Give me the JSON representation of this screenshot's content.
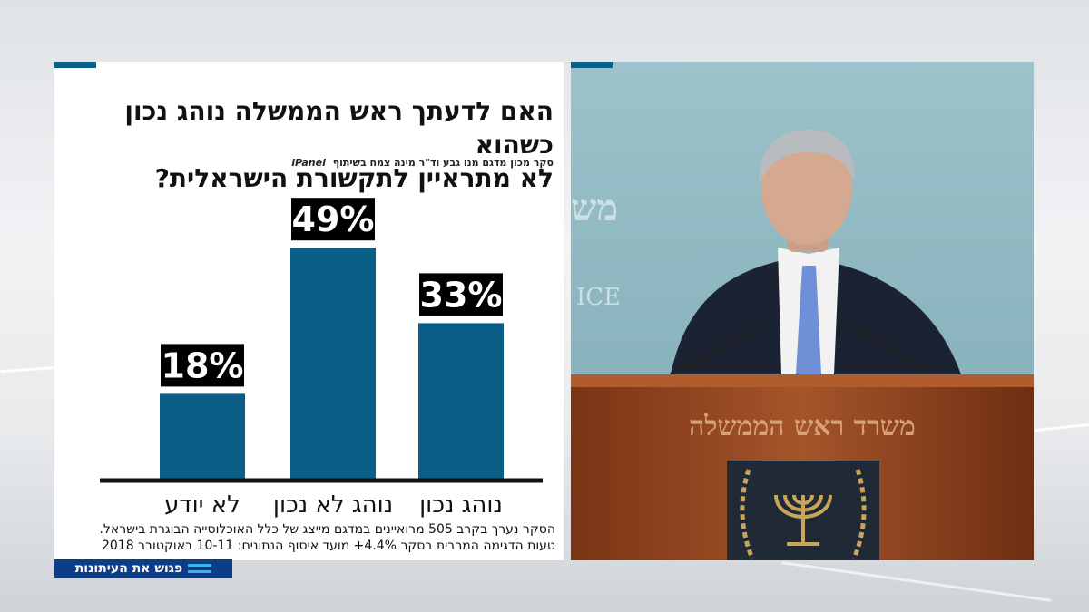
{
  "headline": {
    "line1": "האם לדעתך ראש הממשלה נוהג נכון כשהוא",
    "line2": "לא מתראיין לתקשורת הישראלית?"
  },
  "credit": {
    "text": "סקר מכון מדגם מנו גבע וד\"ר מינה צמח בשיתוף",
    "partner": "iPanel"
  },
  "chart_data": {
    "type": "bar",
    "categories": [
      "לא יודע",
      "נוהג לא נכון",
      "נוהג נכון"
    ],
    "values": [
      18,
      49,
      33
    ],
    "value_labels": [
      "18%",
      "49%",
      "33%"
    ],
    "unit": "%",
    "title": "האם לדעתך ראש הממשלה נוהג נכון כשהוא לא מתראיין לתקשורת הישראלית?",
    "xlabel": "",
    "ylabel": "",
    "ylim": [
      0,
      50
    ],
    "grid": false,
    "legend": "none",
    "bar_color": "#0b5e86",
    "label_bg": "#000000",
    "label_color": "#ffffff"
  },
  "footnote": {
    "line1": "הסקר נערך בקרב 505 מרואיינים במדגם מייצג של כלל האוכלוסייה הבוגרת בישראל.",
    "line2": "טעות הדגימה המרבית בסקר 4.4%+ מועד איסוף הנתונים: 10-11 באוקטובר 2018"
  },
  "program_badge": {
    "label": "פגוש את העיתונות",
    "icon": "equals-lines-icon"
  },
  "photo": {
    "wall_text_top": "מש",
    "wall_text_side": "ICE",
    "podium_text": "משרד ראש הממשלה",
    "emblem": "menorah-emblem-icon"
  },
  "colors": {
    "accent": "#0b5e86",
    "badge": "#0d3d86",
    "photo_wall": "#8fb7c0",
    "podium": "#9a4a22"
  }
}
